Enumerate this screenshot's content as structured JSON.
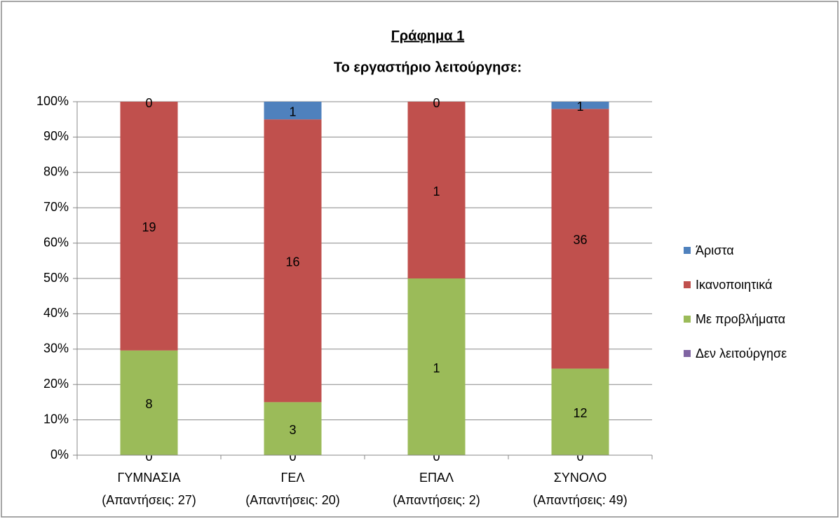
{
  "chart_data": {
    "type": "bar",
    "stacked": "percent",
    "title": "Γράφημα 1",
    "subtitle": "Το εργαστήριο λειτούργησε:",
    "categories": [
      [
        "ΓΥΜΝΑΣΙΑ",
        "(Απαντήσεις: 27)"
      ],
      [
        "ΓΕΛ",
        "(Απαντήσεις: 20)"
      ],
      [
        "ΕΠΑΛ",
        "(Απαντήσεις: 2)"
      ],
      [
        "ΣΥΝΟΛΟ",
        "(Απαντήσεις: 49)"
      ]
    ],
    "series": [
      {
        "name": "Άριστα",
        "color": "#4f81bd",
        "values": [
          0,
          1,
          0,
          1
        ]
      },
      {
        "name": "Ικανοποιητικά",
        "color": "#c0504d",
        "values": [
          19,
          16,
          1,
          36
        ]
      },
      {
        "name": "Με προβλήματα",
        "color": "#9bbb59",
        "values": [
          8,
          3,
          1,
          12
        ]
      },
      {
        "name": "Δεν λειτούργησε",
        "color": "#8064a2",
        "values": [
          0,
          0,
          0,
          0
        ]
      }
    ],
    "ylim": [
      0,
      100
    ],
    "yticks": [
      {
        "value": 0,
        "label": "0%"
      },
      {
        "value": 10,
        "label": "10%"
      },
      {
        "value": 20,
        "label": "20%"
      },
      {
        "value": 30,
        "label": "30%"
      },
      {
        "value": 40,
        "label": "40%"
      },
      {
        "value": 50,
        "label": "50%"
      },
      {
        "value": 60,
        "label": "60%"
      },
      {
        "value": 70,
        "label": "70%"
      },
      {
        "value": 80,
        "label": "80%"
      },
      {
        "value": 90,
        "label": "90%"
      },
      {
        "value": 100,
        "label": "100%"
      }
    ],
    "grid": true,
    "legend": "right"
  }
}
